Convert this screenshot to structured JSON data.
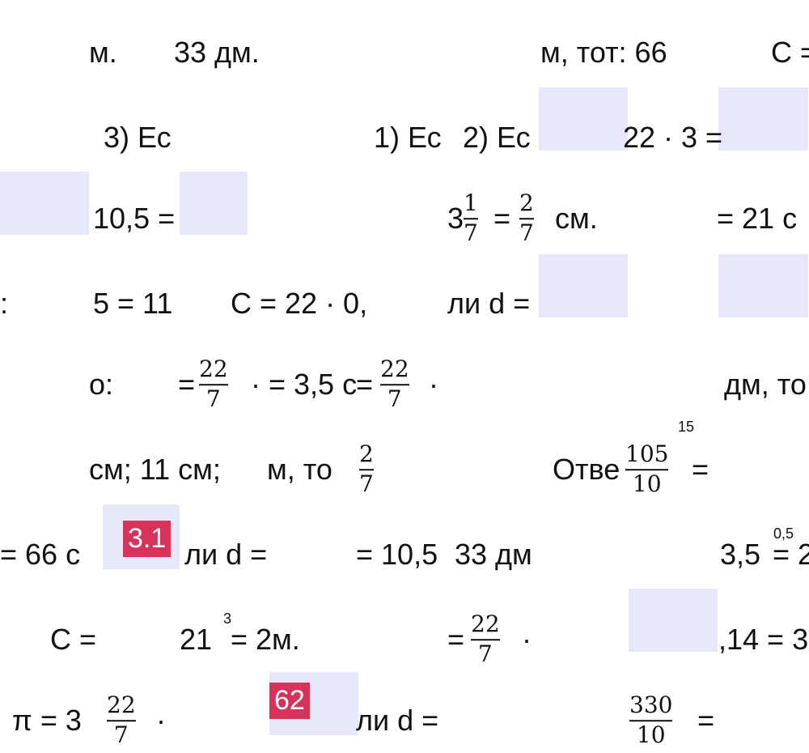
{
  "fragments": [
    "м.",
    "33 дм.",
    "м, тот: 66",
    "С =",
    "3) Ес",
    "1) Ес",
    "2) Ес",
    "22 · 3 =",
    "10,5 =",
    "3",
    "=",
    "см.",
    "= 21 с",
    ":",
    "5 = 11",
    "С = 22 · 0,",
    "ли d =",
    "о:",
    "=",
    "· = 3,5 с",
    "=",
    "·",
    "дм, то",
    "см; 11 см;",
    "м, то",
    "Отве",
    "=",
    "= 66 с",
    "ли d =",
    "= 10,5",
    "33 дм",
    "3,5",
    "= 2",
    "С =",
    "21",
    "= 2м.",
    "=",
    "·",
    ",14 = 3",
    "π = 3",
    "·",
    "ли d =",
    "="
  ],
  "fractions": [
    {
      "numerator": "1",
      "denominator": "7"
    },
    {
      "numerator": "2",
      "denominator": "7"
    },
    {
      "numerator": "22",
      "denominator": "7"
    },
    {
      "numerator": "22",
      "denominator": "7"
    },
    {
      "numerator": "2",
      "denominator": "7"
    },
    {
      "numerator": "105",
      "denominator": "10"
    },
    {
      "numerator": "22",
      "denominator": "7"
    },
    {
      "numerator": "22",
      "denominator": "7"
    },
    {
      "numerator": "330",
      "denominator": "10"
    }
  ],
  "superscripts": [
    "15",
    "0,5",
    "3"
  ],
  "badges": [
    "3.1",
    "62"
  ]
}
